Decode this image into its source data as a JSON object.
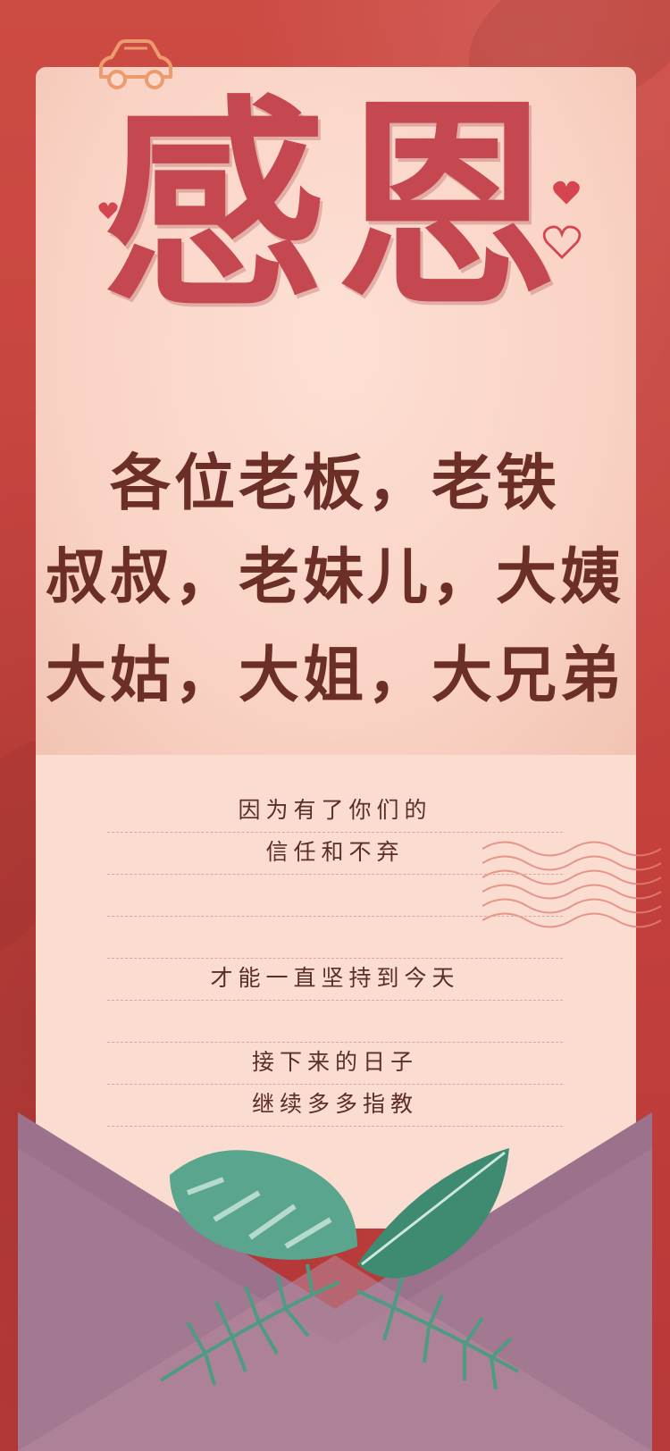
{
  "title": "感恩",
  "greeting": {
    "line1": "各位老板，老铁",
    "line2": "叔叔，老妹儿，大姨",
    "line3": "大姑，大姐，大兄弟"
  },
  "letter_lines": [
    "因为有了你们的",
    "信任和不弃",
    "",
    "",
    "才能一直坚持到今天",
    "",
    "接下来的日子",
    "继续多多指教"
  ],
  "colors": {
    "background": "#c8453f",
    "paper": "#fbd9cc",
    "title": "#c5474f",
    "greeting": "#6b2f28",
    "envelope": "#9b6c88",
    "leaf": "#4f9a83"
  },
  "icons": [
    "car-icon",
    "heart-icon",
    "heart-outline-icon",
    "postmark-wave-icon",
    "monstera-leaf-icon",
    "palm-leaf-icon"
  ]
}
